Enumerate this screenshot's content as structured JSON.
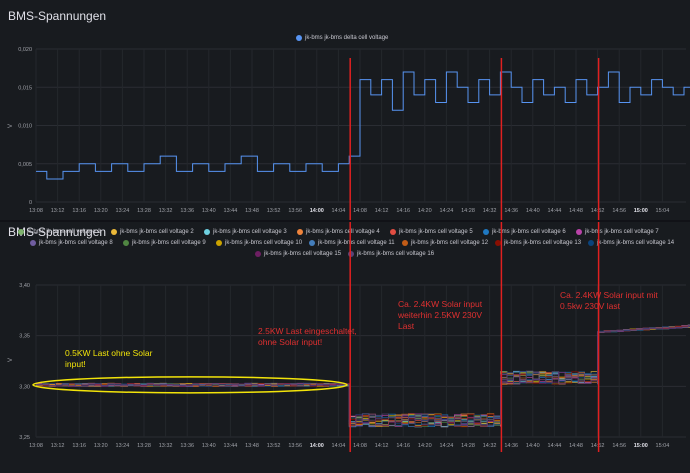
{
  "panel1": {
    "title": "BMS-Spannungen",
    "legend": "jk-bms jk-bms delta cell voltage",
    "ylabel": "V"
  },
  "panel2": {
    "title": "BMS-Spannungen",
    "ylabel": "V",
    "legend": [
      "jk-bms jk-bms cell voltage 1",
      "jk-bms jk-bms cell voltage 2",
      "jk-bms jk-bms cell voltage 3",
      "jk-bms jk-bms cell voltage 4",
      "jk-bms jk-bms cell voltage 5",
      "jk-bms jk-bms cell voltage 6",
      "jk-bms jk-bms cell voltage 7",
      "jk-bms jk-bms cell voltage 8",
      "jk-bms jk-bms cell voltage 9",
      "jk-bms jk-bms cell voltage 10",
      "jk-bms jk-bms cell voltage 11",
      "jk-bms jk-bms cell voltage 12",
      "jk-bms jk-bms cell voltage 13",
      "jk-bms jk-bms cell voltage 14",
      "jk-bms jk-bms cell voltage 15",
      "jk-bms jk-bms cell voltage 16"
    ]
  },
  "annotations": {
    "yellow": "0.5KW Last ohne Solar\ninput!",
    "red1": "2.5KW Last eingeschaltet,\nohne Solar input!",
    "red2": "Ca. 2.4KW Solar input\nweiterhin 2.5KW 230V\nLast",
    "red3": "Ca. 2.4KW Solar input mit\n0.5kw 230V last"
  },
  "colors": {
    "series1": "#5794f2",
    "cells": [
      "#7eb26d",
      "#eab839",
      "#6ed0e0",
      "#ef843c",
      "#e24d42",
      "#1f78c1",
      "#ba43a9",
      "#705da0",
      "#508642",
      "#cca300",
      "#447ebc",
      "#c15c17",
      "#890f02",
      "#0a437c",
      "#6d1f62",
      "#584477"
    ],
    "red_line": "#e02020",
    "highlight": "#f2e40a"
  },
  "chart_data": [
    {
      "type": "line",
      "title": "BMS-Spannungen",
      "ylabel": "V",
      "x_ticks": [
        "13:08",
        "13:12",
        "13:16",
        "13:20",
        "13:24",
        "13:28",
        "13:32",
        "13:36",
        "13:40",
        "13:44",
        "13:48",
        "13:52",
        "13:56",
        "14:00",
        "14:04",
        "14:08",
        "14:12",
        "14:16",
        "14:20",
        "14:24",
        "14:28",
        "14:32",
        "14:36",
        "14:40",
        "14:44",
        "14:48",
        "14:52",
        "14:56",
        "15:00",
        "15:04"
      ],
      "y_ticks": [
        "0,020",
        "0,015",
        "0,010",
        "0,005",
        "0"
      ],
      "ylim": [
        0,
        0.02
      ],
      "series": [
        {
          "name": "jk-bms jk-bms delta cell voltage",
          "x_minutes_from_13_08": [
            0,
            2,
            5,
            8,
            11,
            14,
            17,
            20,
            23,
            26,
            29,
            32,
            35,
            38,
            41,
            44,
            47,
            50,
            53,
            56,
            58,
            60,
            62,
            64,
            66,
            68,
            70,
            72,
            74,
            76,
            78,
            80,
            82,
            84,
            86,
            88,
            90,
            92,
            94,
            96,
            98,
            100,
            102,
            104,
            106,
            108,
            110,
            112,
            114,
            116,
            118,
            120,
            122,
            124,
            126,
            128,
            130,
            132,
            134,
            136,
            138,
            140,
            142,
            144,
            146,
            148
          ],
          "values": [
            0.004,
            0.003,
            0.004,
            0.005,
            0.004,
            0.005,
            0.004,
            0.005,
            0.006,
            0.004,
            0.005,
            0.004,
            0.005,
            0.006,
            0.004,
            0.005,
            0.004,
            0.005,
            0.004,
            0.005,
            0.006,
            0.016,
            0.014,
            0.016,
            0.012,
            0.017,
            0.014,
            0.016,
            0.013,
            0.017,
            0.015,
            0.013,
            0.016,
            0.014,
            0.017,
            0.015,
            0.013,
            0.016,
            0.014,
            0.015,
            0.013,
            0.016,
            0.014,
            0.015,
            0.017,
            0.013,
            0.015,
            0.014,
            0.016,
            0.015,
            0.014,
            0.015,
            0.008,
            0.006,
            0.009,
            0.005,
            0.007,
            0.004,
            0.008,
            0.006,
            0.005,
            0.007,
            0.004,
            0.006,
            0.003,
            0.008
          ]
        }
      ]
    },
    {
      "type": "line",
      "title": "BMS-Spannungen",
      "ylabel": "V",
      "x_ticks": [
        "13:08",
        "13:12",
        "13:16",
        "13:20",
        "13:24",
        "13:28",
        "13:32",
        "13:36",
        "13:40",
        "13:44",
        "13:48",
        "13:52",
        "13:56",
        "14:00",
        "14:04",
        "14:08",
        "14:12",
        "14:16",
        "14:20",
        "14:24",
        "14:28",
        "14:32",
        "14:36",
        "14:40",
        "14:44",
        "14:48",
        "14:52",
        "14:56",
        "15:00",
        "15:04"
      ],
      "y_ticks": [
        "3,40",
        "3,35",
        "3,30",
        "3,25"
      ],
      "ylim": [
        3.25,
        3.4
      ],
      "segments": [
        {
          "from_min": 0,
          "to_min": 58,
          "voltage_range": [
            3.3,
            3.303
          ]
        },
        {
          "from_min": 58,
          "to_min": 86,
          "voltage_range": [
            3.26,
            3.273
          ]
        },
        {
          "from_min": 86,
          "to_min": 104,
          "voltage_range": [
            3.302,
            3.315
          ]
        },
        {
          "from_min": 104,
          "to_min": 152,
          "voltage_range": [
            3.345,
            3.372
          ]
        }
      ],
      "markers_min": [
        58,
        86,
        104
      ]
    }
  ]
}
